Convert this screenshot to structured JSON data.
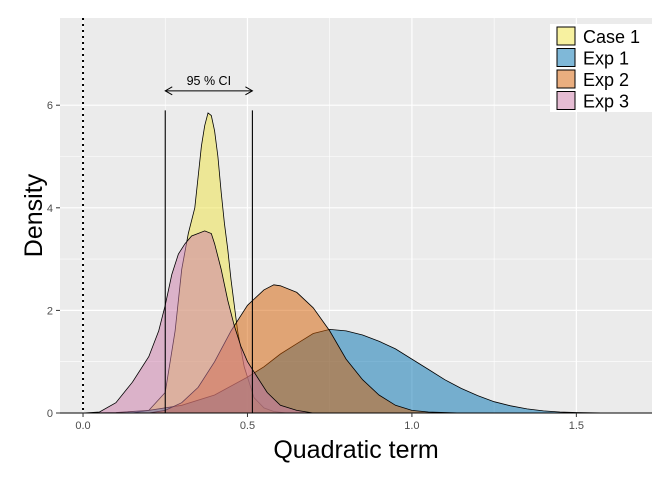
{
  "chart_data": {
    "type": "area",
    "xlabel": "Quadratic term",
    "ylabel": "Density",
    "xlim": [
      -0.07,
      1.73
    ],
    "ylim": [
      0,
      7.7
    ],
    "xticks": [
      0.0,
      0.5,
      1.0,
      1.5
    ],
    "xtick_labels": [
      "0.0",
      "0.5",
      "1.0",
      "1.5"
    ],
    "yticks": [
      0,
      2,
      4,
      6
    ],
    "ytick_labels": [
      "0",
      "2",
      "4",
      "6"
    ],
    "grid": true,
    "background": "#ebebeb",
    "legend_position": "top-right",
    "reference_line": {
      "x": 0,
      "style": "dotted"
    },
    "ci": {
      "label": "95 % CI",
      "lower": 0.25,
      "upper": 0.515,
      "arrow_y": 6.28,
      "line_top": 5.9
    },
    "series": [
      {
        "name": "Case 1",
        "color": "#f0e442",
        "x": [
          0.15,
          0.2,
          0.25,
          0.28,
          0.3,
          0.32,
          0.34,
          0.35,
          0.36,
          0.37,
          0.38,
          0.39,
          0.4,
          0.41,
          0.42,
          0.43,
          0.44,
          0.45,
          0.47,
          0.49,
          0.52,
          0.55,
          0.58,
          0.62
        ],
        "y": [
          0,
          0.05,
          0.4,
          1.6,
          2.8,
          3.5,
          4.0,
          4.6,
          5.2,
          5.6,
          5.85,
          5.8,
          5.5,
          5.0,
          4.3,
          3.7,
          3.2,
          2.6,
          1.6,
          0.9,
          0.3,
          0.1,
          0.03,
          0
        ]
      },
      {
        "name": "Exp 1",
        "color": "#0072b2",
        "x": [
          0.0,
          0.1,
          0.2,
          0.3,
          0.4,
          0.5,
          0.55,
          0.6,
          0.65,
          0.7,
          0.75,
          0.8,
          0.85,
          0.9,
          0.95,
          1.0,
          1.05,
          1.1,
          1.15,
          1.2,
          1.25,
          1.3,
          1.35,
          1.4,
          1.45,
          1.5,
          1.6
        ],
        "y": [
          0,
          0.01,
          0.05,
          0.15,
          0.35,
          0.7,
          0.9,
          1.15,
          1.35,
          1.55,
          1.63,
          1.6,
          1.52,
          1.4,
          1.25,
          1.05,
          0.85,
          0.65,
          0.48,
          0.34,
          0.22,
          0.14,
          0.08,
          0.04,
          0.02,
          0.01,
          0
        ]
      },
      {
        "name": "Exp 2",
        "color": "#d55e00",
        "x": [
          0.2,
          0.25,
          0.3,
          0.35,
          0.4,
          0.45,
          0.5,
          0.55,
          0.58,
          0.6,
          0.65,
          0.7,
          0.75,
          0.8,
          0.85,
          0.9,
          0.95,
          1.0,
          1.05,
          1.1,
          1.15
        ],
        "y": [
          0,
          0.05,
          0.2,
          0.5,
          1.0,
          1.6,
          2.1,
          2.4,
          2.5,
          2.48,
          2.35,
          2.05,
          1.6,
          1.05,
          0.65,
          0.35,
          0.15,
          0.05,
          0.02,
          0.01,
          0
        ]
      },
      {
        "name": "Exp 3",
        "color": "#cc79a7",
        "x": [
          0.0,
          0.05,
          0.1,
          0.15,
          0.2,
          0.23,
          0.25,
          0.27,
          0.29,
          0.31,
          0.33,
          0.35,
          0.37,
          0.39,
          0.4,
          0.42,
          0.44,
          0.46,
          0.48,
          0.5,
          0.53,
          0.56,
          0.6,
          0.65,
          0.7
        ],
        "y": [
          0,
          0.02,
          0.2,
          0.6,
          1.1,
          1.6,
          2.1,
          2.7,
          3.1,
          3.3,
          3.45,
          3.5,
          3.55,
          3.5,
          3.3,
          2.8,
          2.2,
          1.7,
          1.3,
          1.0,
          0.7,
          0.4,
          0.15,
          0.05,
          0
        ]
      }
    ]
  }
}
